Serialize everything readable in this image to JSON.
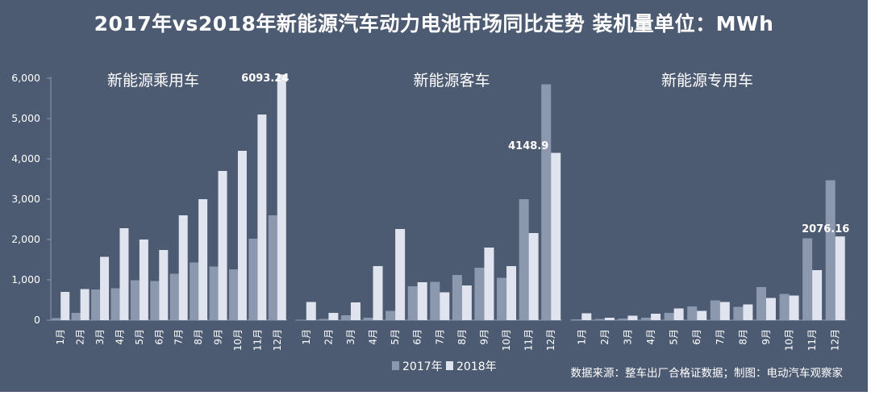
{
  "title": "2017年vs2018年新能源汽车动力电池市场同比走势  装机量单位：MWh",
  "source": "数据来源：整车出厂合格证数据；制图：电动汽车观察家",
  "colors": {
    "background": "#4d5b72",
    "series_2017": "#8c98ad",
    "series_2018": "#dfe4ee",
    "text": "#ffffff"
  },
  "chart_data": {
    "type": "bar",
    "ylim": [
      0,
      6500
    ],
    "yticks": [
      "0",
      "1,000",
      "2,000",
      "3,000",
      "4,000",
      "5,000",
      "6,000"
    ],
    "ytick_values": [
      0,
      1000,
      2000,
      3000,
      4000,
      5000,
      6000
    ],
    "legend": [
      "2017年",
      "2018年"
    ],
    "legend_position": "bottom-center",
    "grid": false,
    "panels": [
      {
        "title": "新能源乘用车",
        "categories": [
          "1月",
          "2月",
          "3月",
          "4月",
          "5月",
          "6月",
          "7月",
          "8月",
          "9月",
          "10月",
          "11月",
          "12月"
        ],
        "series": [
          {
            "name": "2017年",
            "values": [
              50,
              180,
              760,
              790,
              990,
              970,
              1150,
              1430,
              1330,
              1260,
              2020,
              2600
            ]
          },
          {
            "name": "2018年",
            "values": [
              700,
              770,
              1570,
              2280,
              2000,
              1740,
              2600,
              3000,
              3700,
              4200,
              5100,
              6093.24
            ]
          }
        ],
        "annotation": "6093.24"
      },
      {
        "title": "新能源客车",
        "categories": [
          "1月",
          "2月",
          "3月",
          "4月",
          "5月",
          "6月",
          "7月",
          "8月",
          "9月",
          "10月",
          "11月",
          "12月"
        ],
        "series": [
          {
            "name": "2017年",
            "values": [
              5,
              30,
              120,
              60,
              230,
              840,
              950,
              1120,
              1300,
              1050,
              3000,
              5850
            ]
          },
          {
            "name": "2018年",
            "values": [
              450,
              180,
              440,
              1340,
              2260,
              940,
              690,
              860,
              1800,
              1340,
              2160,
              4148.9
            ]
          }
        ],
        "annotation": "4148.9"
      },
      {
        "title": "新能源专用车",
        "categories": [
          "1月",
          "2月",
          "3月",
          "4月",
          "5月",
          "6月",
          "7月",
          "8月",
          "9月",
          "10月",
          "11月",
          "12月"
        ],
        "series": [
          {
            "name": "2017年",
            "values": [
              20,
              30,
              40,
              60,
              180,
              340,
              490,
              330,
              820,
              650,
              2030,
              3470
            ]
          },
          {
            "name": "2018年",
            "values": [
              170,
              60,
              110,
              160,
              290,
              230,
              450,
              390,
              550,
              610,
              1240,
              2076.16
            ]
          }
        ],
        "annotation": "2076.16"
      }
    ]
  }
}
